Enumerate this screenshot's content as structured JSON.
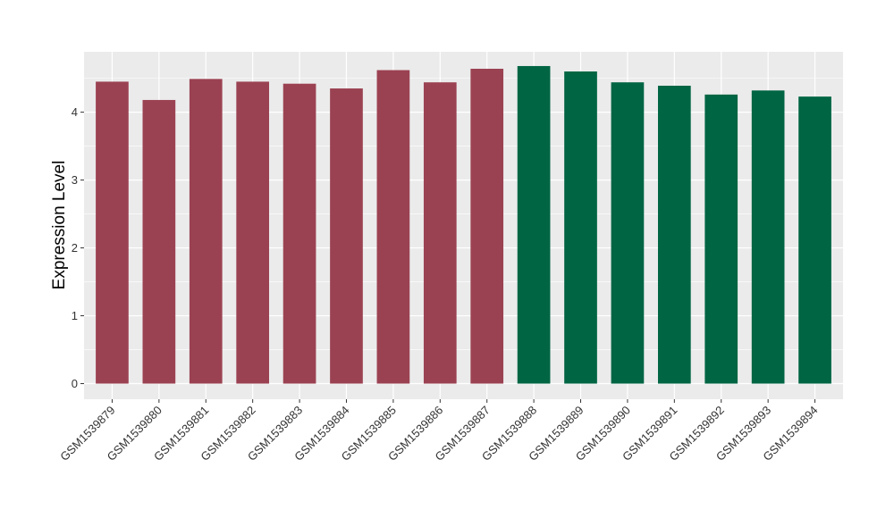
{
  "chart_data": {
    "type": "bar",
    "title": "",
    "xlabel": "",
    "ylabel": "Expression Level",
    "categories": [
      "GSM1539879",
      "GSM1539880",
      "GSM1539881",
      "GSM1539882",
      "GSM1539883",
      "GSM1539884",
      "GSM1539885",
      "GSM1539886",
      "GSM1539887",
      "GSM1539888",
      "GSM1539889",
      "GSM1539890",
      "GSM1539891",
      "GSM1539892",
      "GSM1539893",
      "GSM1539894"
    ],
    "values": [
      4.45,
      4.18,
      4.49,
      4.45,
      4.42,
      4.35,
      4.62,
      4.44,
      4.64,
      4.68,
      4.6,
      4.44,
      4.39,
      4.26,
      4.32,
      4.23
    ],
    "bar_colors": [
      "#9b4252",
      "#9b4252",
      "#9b4252",
      "#9b4252",
      "#9b4252",
      "#9b4252",
      "#9b4252",
      "#9b4252",
      "#9b4252",
      "#006543",
      "#006543",
      "#006543",
      "#006543",
      "#006543",
      "#006543",
      "#006543"
    ],
    "ylim": [
      -0.23,
      4.89
    ],
    "yticks": [
      0,
      1,
      2,
      3,
      4
    ],
    "ytick_labels": [
      "0",
      "1",
      "2",
      "3",
      "4"
    ],
    "grid": true,
    "panel_background": "#ebebeb",
    "gridline_color": "#ffffff"
  }
}
